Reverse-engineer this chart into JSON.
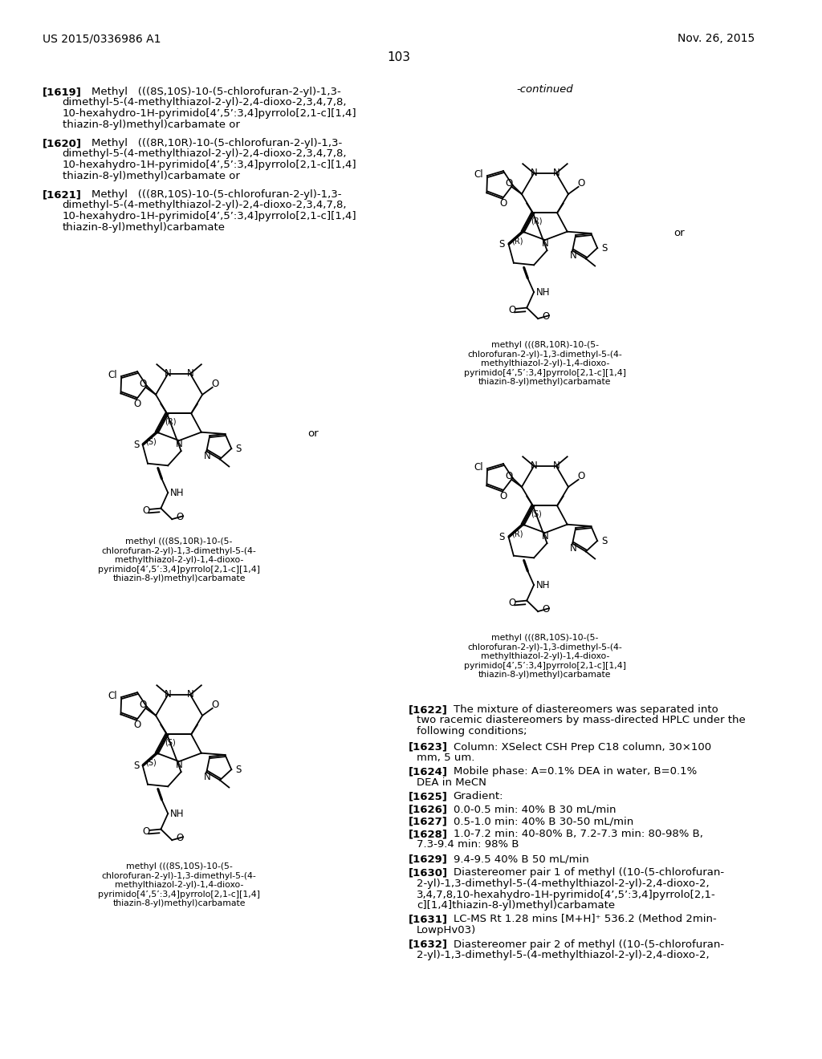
{
  "page_number": "103",
  "header_left": "US 2015/0336986 A1",
  "header_right": "Nov. 26, 2015",
  "background_color": "#ffffff",
  "text_color": "#000000",
  "continued_label": "-continued",
  "para_1619_bold": "[1619]",
  "para_1619_line1": "Methyl   (((8S,10S)-10-(5-chlorofuran-2-yl)-1,3-",
  "para_1619_line2": "dimethyl-5-(4-methylthiazol-2-yl)-2,4-dioxo-2,3,4,7,8,",
  "para_1619_line3": "10-hexahydro-1H-pyrimido[4’,5’:3,4]pyrrolo[2,1-c][1,4]",
  "para_1619_line4": "thiazin-8-yl)methyl)carbamate or",
  "para_1620_bold": "[1620]",
  "para_1620_line1": "Methyl   (((8R,10R)-10-(5-chlorofuran-2-yl)-1,3-",
  "para_1620_line2": "dimethyl-5-(4-methylthiazol-2-yl)-2,4-dioxo-2,3,4,7,8,",
  "para_1620_line3": "10-hexahydro-1H-pyrimido[4’,5’:3,4]pyrrolo[2,1-c][1,4]",
  "para_1620_line4": "thiazin-8-yl)methyl)carbamate or",
  "para_1621_bold": "[1621]",
  "para_1621_line1": "Methyl   (((8R,10S)-10-(5-chlorofuran-2-yl)-1,3-",
  "para_1621_line2": "dimethyl-5-(4-methylthiazol-2-yl)-2,4-dioxo-2,3,4,7,8,",
  "para_1621_line3": "10-hexahydro-1H-pyrimido[4’,5’:3,4]pyrrolo[2,1-c][1,4]",
  "para_1621_line4": "thiazin-8-yl)methyl)carbamate",
  "lbl1": "methyl (((8S,10R)-10-(5-\nchlorofuran-2-yl)-1,3-dimethyl-5-(4-\nmethylthiazol-2-yl)-1,4-dioxo-\npyrimido[4’,5’:3,4]pyrrolo[2,1-c][1,4]\nthiazin-8-yl)methyl)carbamate",
  "lbl2": "methyl (((8R,10R)-10-(5-\nchlorofuran-2-yl)-1,3-dimethyl-5-(4-\nmethylthiazol-2-yl)-1,4-dioxo-\npyrimido[4’,5’:3,4]pyrrolo[2,1-c][1,4]\nthiazin-8-yl)methyl)carbamate",
  "lbl3": "methyl (((8S,10S)-10-(5-\nchlorofuran-2-yl)-1,3-dimethyl-5-(4-\nmethylthiazol-2-yl)-1,4-dioxo-\npyrimido[4’,5’:3,4]pyrrolo[2,1-c][1,4]\nthiazin-8-yl)methyl)carbamate",
  "lbl4": "methyl (((8R,10S)-10-(5-\nchlorofuran-2-yl)-1,3-dimethyl-5-(4-\nmethylthiazol-2-yl)-1,4-dioxo-\npyrimido[4’,5’:3,4]pyrrolo[2,1-c][1,4]\nthiazin-8-yl)methyl)carbamate",
  "p1622b": "[1622]",
  "p1622t": "The mixture of diastereomers was separated into\ntwo racemic diastereomers by mass-directed HPLC under the\nfollowing conditions;",
  "p1623b": "[1623]",
  "p1623t": "Column: XSelect CSH Prep C18 column, 30×100\nmm, 5 um.",
  "p1624b": "[1624]",
  "p1624t": "Mobile phase: A=0.1% DEA in water, B=0.1%\nDEA in MeCN",
  "p1625b": "[1625]",
  "p1625t": "Gradient:",
  "p1626b": "[1626]",
  "p1626t": "0.0-0.5 min: 40% B 30 mL/min",
  "p1627b": "[1627]",
  "p1627t": "0.5-1.0 min: 40% B 30-50 mL/min",
  "p1628b": "[1628]",
  "p1628t": "1.0-7.2 min: 40-80% B, 7.2-7.3 min: 80-98% B,\n7.3-9.4 min: 98% B",
  "p1629b": "[1629]",
  "p1629t": "9.4-9.5 40% B 50 mL/min",
  "p1630b": "[1630]",
  "p1630t": "Diastereomer pair 1 of methyl ((10-(5-chlorofuran-\n2-yl)-1,3-dimethyl-5-(4-methylthiazol-2-yl)-2,4-dioxo-2,\n3,4,7,8,10-hexahydro-1H-pyrimido[4’,5’:3,4]pyrrolo[2,1-\nc][1,4]thiazin-8-yl)methyl)carbamate",
  "p1631b": "[1631]",
  "p1631t": "LC-MS Rt 1.28 mins [M+H]⁺ 536.2 (Method 2min-\nLowpHv03)",
  "p1632b": "[1632]",
  "p1632t": "Diastereomer pair 2 of methyl ((10-(5-chlorofuran-\n2-yl)-1,3-dimethyl-5-(4-methylthiazol-2-yl)-2,4-dioxo-2,"
}
